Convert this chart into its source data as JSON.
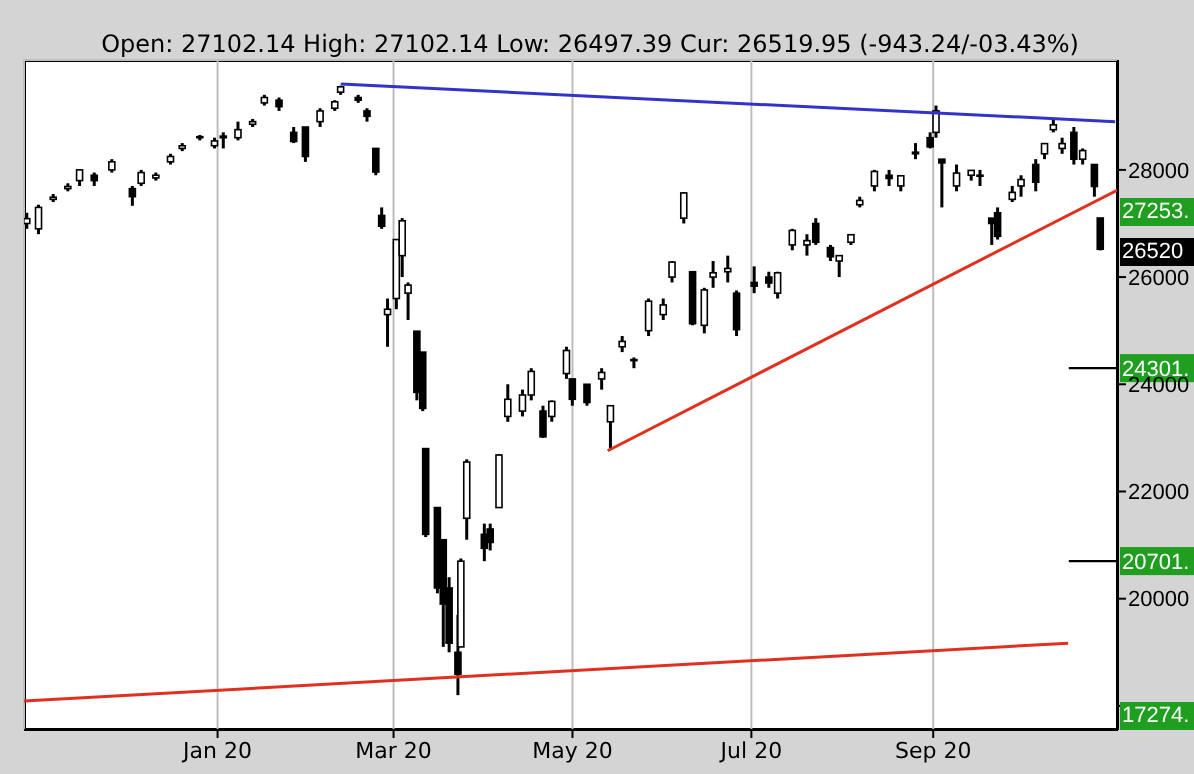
{
  "chart_data": {
    "type": "candlestick",
    "subtitle": "Open: 27102.14 High: 27102.14 Low: 26497.39 Cur: 26519.95 (-943.24/-03.43%)",
    "color": "#000000",
    "x": [
      "2019-10-28",
      "2019-11-01",
      "2019-11-06",
      "2019-11-11",
      "2019-11-15",
      "2019-11-20",
      "2019-11-26",
      "2019-12-03",
      "2019-12-06",
      "2019-12-11",
      "2019-12-16",
      "2019-12-20",
      "2019-12-26",
      "2019-12-31",
      "2020-01-03",
      "2020-01-08",
      "2020-01-13",
      "2020-01-17",
      "2020-01-22",
      "2020-01-27",
      "2020-01-31",
      "2020-02-05",
      "2020-02-10",
      "2020-02-12",
      "2020-02-18",
      "2020-02-21",
      "2020-02-24",
      "2020-02-26",
      "2020-02-28",
      "2020-03-02",
      "2020-03-04",
      "2020-03-06",
      "2020-03-09",
      "2020-03-11",
      "2020-03-12",
      "2020-03-16",
      "2020-03-18",
      "2020-03-20",
      "2020-03-23",
      "2020-03-24",
      "2020-03-26",
      "2020-04-01",
      "2020-04-03",
      "2020-04-06",
      "2020-04-09",
      "2020-04-14",
      "2020-04-17",
      "2020-04-21",
      "2020-04-24",
      "2020-04-29",
      "2020-05-01",
      "2020-05-06",
      "2020-05-11",
      "2020-05-14",
      "2020-05-18",
      "2020-05-22",
      "2020-05-27",
      "2020-06-01",
      "2020-06-04",
      "2020-06-08",
      "2020-06-11",
      "2020-06-15",
      "2020-06-18",
      "2020-06-23",
      "2020-06-26",
      "2020-07-02",
      "2020-07-07",
      "2020-07-10",
      "2020-07-15",
      "2020-07-20",
      "2020-07-23",
      "2020-07-28",
      "2020-07-31",
      "2020-08-04",
      "2020-08-07",
      "2020-08-12",
      "2020-08-17",
      "2020-08-21",
      "2020-08-26",
      "2020-08-31",
      "2020-09-02",
      "2020-09-04",
      "2020-09-09",
      "2020-09-14",
      "2020-09-17",
      "2020-09-21",
      "2020-09-23",
      "2020-09-28",
      "2020-10-01",
      "2020-10-06",
      "2020-10-09",
      "2020-10-12",
      "2020-10-15",
      "2020-10-19",
      "2020-10-22",
      "2020-10-26",
      "2020-10-28"
    ],
    "ohlc": [
      [
        27000,
        27200,
        26900,
        27090
      ],
      [
        26900,
        27350,
        26800,
        27300
      ],
      [
        27450,
        27550,
        27400,
        27490
      ],
      [
        27650,
        27750,
        27600,
        27690
      ],
      [
        27800,
        28010,
        27700,
        28000
      ],
      [
        27900,
        27950,
        27700,
        27800
      ],
      [
        28000,
        28200,
        27950,
        28150
      ],
      [
        27650,
        27700,
        27330,
        27500
      ],
      [
        27750,
        28000,
        27700,
        27950
      ],
      [
        27850,
        27950,
        27800,
        27900
      ],
      [
        28150,
        28300,
        28100,
        28250
      ],
      [
        28400,
        28500,
        28350,
        28450
      ],
      [
        28600,
        28650,
        28550,
        28620
      ],
      [
        28450,
        28600,
        28400,
        28540
      ],
      [
        28600,
        28700,
        28400,
        28630
      ],
      [
        28600,
        28900,
        28550,
        28750
      ],
      [
        28850,
        28950,
        28800,
        28900
      ],
      [
        29250,
        29400,
        29200,
        29350
      ],
      [
        29300,
        29350,
        29100,
        29180
      ],
      [
        28700,
        28800,
        28500,
        28530
      ],
      [
        28800,
        28800,
        28150,
        28250
      ],
      [
        28900,
        29150,
        28800,
        29100
      ],
      [
        29150,
        29300,
        29100,
        29270
      ],
      [
        29450,
        29570,
        29400,
        29550
      ],
      [
        29350,
        29400,
        29250,
        29300
      ],
      [
        29100,
        29150,
        28900,
        29000
      ],
      [
        28400,
        28400,
        27900,
        27960
      ],
      [
        27150,
        27300,
        26900,
        26950
      ],
      [
        25300,
        25600,
        24700,
        25400
      ],
      [
        25600,
        26700,
        25400,
        26700
      ],
      [
        26400,
        27100,
        26000,
        27050
      ],
      [
        25700,
        25900,
        25200,
        25850
      ],
      [
        24990,
        24990,
        23700,
        23850
      ],
      [
        24600,
        24600,
        23500,
        23550
      ],
      [
        22800,
        22800,
        21150,
        21200
      ],
      [
        21700,
        21700,
        20100,
        20200
      ],
      [
        21100,
        21100,
        19100,
        19900
      ],
      [
        20200,
        20400,
        19000,
        19170
      ],
      [
        19000,
        19700,
        18200,
        18590
      ],
      [
        19100,
        20750,
        19100,
        20700
      ],
      [
        21500,
        22600,
        21100,
        22550
      ],
      [
        21200,
        21400,
        20700,
        20940
      ],
      [
        21300,
        21400,
        20900,
        21050
      ],
      [
        21700,
        22700,
        21700,
        22680
      ],
      [
        23400,
        24000,
        23300,
        23720
      ],
      [
        23500,
        23900,
        23400,
        23800
      ],
      [
        23800,
        24300,
        23700,
        24240
      ],
      [
        23500,
        23600,
        23000,
        23020
      ],
      [
        23400,
        23700,
        23300,
        23680
      ],
      [
        24200,
        24700,
        24100,
        24630
      ],
      [
        24100,
        24100,
        23600,
        23720
      ],
      [
        24000,
        24000,
        23600,
        23660
      ],
      [
        24100,
        24300,
        23900,
        24220
      ],
      [
        23300,
        23600,
        22790,
        23600
      ],
      [
        24700,
        24900,
        24600,
        24800
      ],
      [
        24450,
        24500,
        24300,
        24460
      ],
      [
        25000,
        25600,
        24900,
        25550
      ],
      [
        25300,
        25600,
        25200,
        25480
      ],
      [
        26000,
        26300,
        25900,
        26280
      ],
      [
        27100,
        27580,
        27000,
        27570
      ],
      [
        26100,
        26100,
        25100,
        25130
      ],
      [
        25100,
        25800,
        24950,
        25760
      ],
      [
        26000,
        26300,
        25800,
        26080
      ],
      [
        26100,
        26400,
        25900,
        26160
      ],
      [
        25700,
        25750,
        24900,
        25020
      ],
      [
        25900,
        26200,
        25700,
        25830
      ],
      [
        26000,
        26100,
        25800,
        25890
      ],
      [
        25700,
        26100,
        25600,
        26080
      ],
      [
        26600,
        26900,
        26500,
        26870
      ],
      [
        26600,
        26800,
        26400,
        26680
      ],
      [
        27000,
        27100,
        26600,
        26650
      ],
      [
        26550,
        26600,
        26300,
        26380
      ],
      [
        26300,
        26400,
        26000,
        26400
      ],
      [
        26650,
        26800,
        26600,
        26790
      ],
      [
        27350,
        27500,
        27300,
        27430
      ],
      [
        27700,
        28000,
        27600,
        27970
      ],
      [
        27900,
        28000,
        27700,
        27840
      ],
      [
        27700,
        27900,
        27600,
        27890
      ],
      [
        28300,
        28500,
        28200,
        28330
      ],
      [
        28600,
        28700,
        28400,
        28430
      ],
      [
        28700,
        29200,
        28600,
        29100
      ],
      [
        28200,
        28200,
        27300,
        28130
      ],
      [
        27700,
        28100,
        27600,
        27940
      ],
      [
        27900,
        28000,
        27800,
        27990
      ],
      [
        27900,
        28000,
        27700,
        27900
      ],
      [
        27100,
        27100,
        26600,
        27000
      ],
      [
        27200,
        27300,
        26700,
        26760
      ],
      [
        27450,
        27700,
        27400,
        27580
      ],
      [
        27700,
        27900,
        27500,
        27820
      ],
      [
        28100,
        28200,
        27600,
        27770
      ],
      [
        28300,
        28500,
        28200,
        28490
      ],
      [
        28750,
        28950,
        28700,
        28840
      ],
      [
        28400,
        28600,
        28300,
        28490
      ],
      [
        28700,
        28800,
        28100,
        28200
      ],
      [
        28200,
        28400,
        28100,
        28360
      ],
      [
        28100,
        28100,
        27500,
        27690
      ],
      [
        27102.14,
        27102.14,
        26497.39,
        26519.95
      ]
    ],
    "series": [
      {
        "type": "line",
        "color": "#3333cc",
        "x": [
          "2020-02-12",
          "2020-11-02"
        ],
        "values": [
          29600,
          28900
        ]
      },
      {
        "type": "line",
        "color": "#e03020",
        "x": [
          "2020-05-13",
          "2020-11-03"
        ],
        "values": [
          22760,
          27630
        ]
      },
      {
        "type": "line",
        "color": "#e03020",
        "x": [
          "2019-10-27",
          "2020-10-17"
        ],
        "values": [
          18090,
          19170
        ]
      }
    ],
    "xlim": [
      "2019-10-27",
      "2020-11-03"
    ],
    "xticks": [
      {
        "value": "2020-01-01",
        "label": "Jan 20"
      },
      {
        "value": "2020-03-01",
        "label": "Mar 20"
      },
      {
        "value": "2020-05-01",
        "label": "May 20"
      },
      {
        "value": "2020-07-01",
        "label": "Jul 20"
      },
      {
        "value": "2020-09-01",
        "label": "Sep 20"
      }
    ],
    "ylim": [
      17550,
      30050
    ],
    "yticks": [
      {
        "value": 18000,
        "label": null
      },
      20000,
      22000,
      24000,
      26000,
      28000
    ],
    "grid": true,
    "ref_lines": [
      {
        "axis": "y",
        "value": 24301,
        "label": "24301.",
        "color": "#000000"
      },
      {
        "axis": "y",
        "value": 20701,
        "label": "20701.",
        "color": "#000000"
      }
    ],
    "annotations": [
      "27253.",
      "26520",
      "17274."
    ]
  }
}
